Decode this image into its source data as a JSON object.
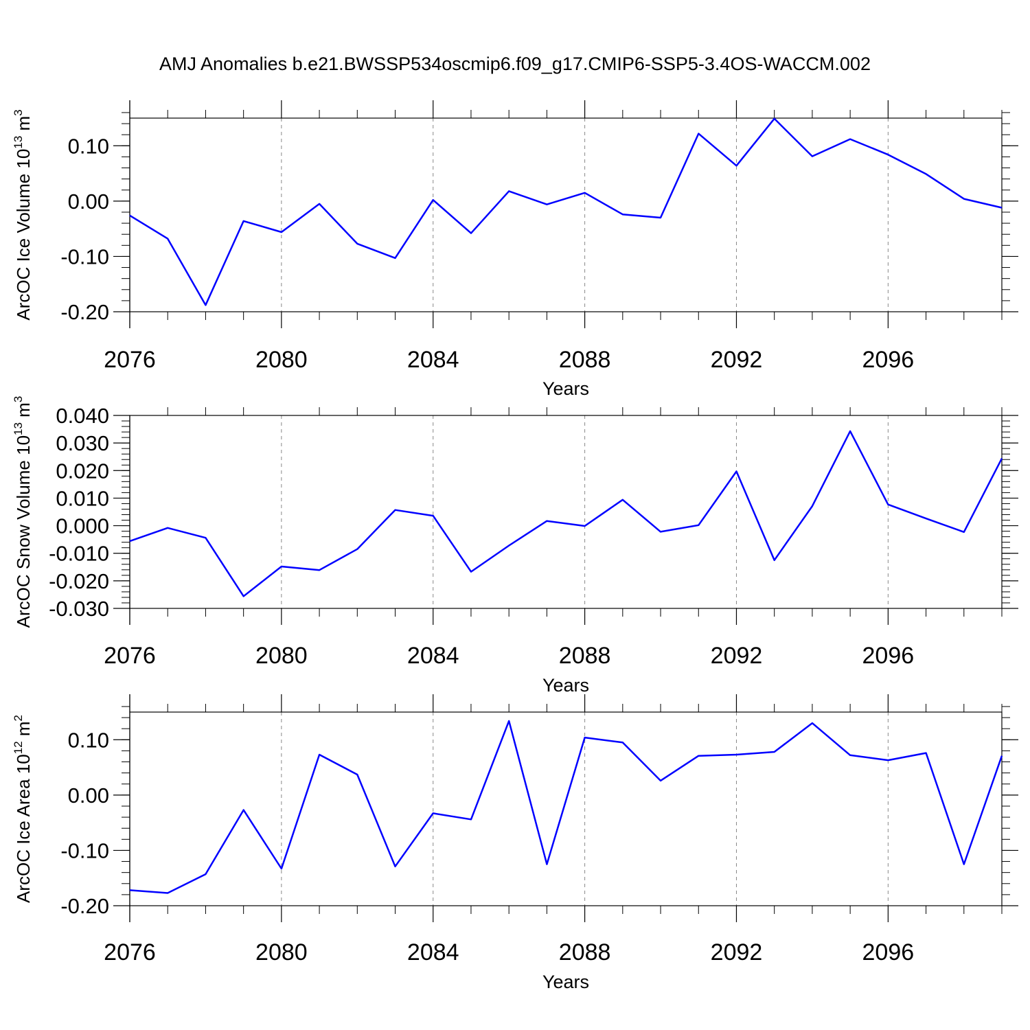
{
  "title": "AMJ Anomalies b.e21.BWSSP534oscmip6.f09_g17.CMIP6-SSP5-3.4OS-WACCM.002",
  "colors": {
    "series": "#0000ff",
    "axis": "#000000",
    "grid": "#888888"
  },
  "chart_data": [
    {
      "type": "line",
      "name": "ice-volume",
      "ylabel": "ArcOC Ice Volume 10",
      "ylabel_sup": "13",
      "ylabel_unit": " m",
      "ylabel_unit_sup": "3",
      "xlabel": "Years",
      "xlim": [
        2076,
        2099
      ],
      "ylim": [
        -0.2,
        0.15
      ],
      "yticks": [
        -0.2,
        -0.1,
        0.0,
        0.1
      ],
      "ytick_labels": [
        "-0.20",
        "-0.10",
        "0.00",
        "0.10"
      ],
      "yminor_step": 0.02,
      "xticks": [
        2076,
        2080,
        2084,
        2088,
        2092,
        2096
      ],
      "xtick_labels": [
        "2076",
        "2080",
        "2084",
        "2088",
        "2092",
        "2096"
      ],
      "grid": "vertical-dashed",
      "series": [
        {
          "name": "ArcOC Ice Volume",
          "x": [
            2076,
            2077,
            2078,
            2079,
            2080,
            2081,
            2082,
            2083,
            2084,
            2085,
            2086,
            2087,
            2088,
            2089,
            2090,
            2091,
            2092,
            2093,
            2094,
            2095,
            2096,
            2097,
            2098,
            2099
          ],
          "values": [
            -0.026,
            -0.068,
            -0.188,
            -0.036,
            -0.056,
            -0.005,
            -0.077,
            -0.103,
            0.002,
            -0.058,
            0.018,
            -0.006,
            0.015,
            -0.024,
            -0.03,
            0.122,
            0.064,
            0.149,
            0.081,
            0.112,
            0.084,
            0.049,
            0.004,
            -0.012
          ]
        }
      ]
    },
    {
      "type": "line",
      "name": "snow-volume",
      "ylabel": "ArcOC Snow Volume 10",
      "ylabel_sup": "13",
      "ylabel_unit": " m",
      "ylabel_unit_sup": "3",
      "xlabel": "Years",
      "xlim": [
        2076,
        2099
      ],
      "ylim": [
        -0.03,
        0.04
      ],
      "yticks": [
        -0.03,
        -0.02,
        -0.01,
        0.0,
        0.01,
        0.02,
        0.03,
        0.04
      ],
      "ytick_labels": [
        "-0.030",
        "-0.020",
        "-0.010",
        "0.000",
        "0.010",
        "0.020",
        "0.030",
        "0.040"
      ],
      "yminor_step": 0.002,
      "xticks": [
        2076,
        2080,
        2084,
        2088,
        2092,
        2096
      ],
      "xtick_labels": [
        "2076",
        "2080",
        "2084",
        "2088",
        "2092",
        "2096"
      ],
      "grid": "vertical-dashed",
      "series": [
        {
          "name": "ArcOC Snow Volume",
          "x": [
            2076,
            2077,
            2078,
            2079,
            2080,
            2081,
            2082,
            2083,
            2084,
            2085,
            2086,
            2087,
            2088,
            2089,
            2090,
            2091,
            2092,
            2093,
            2094,
            2095,
            2096,
            2097,
            2098,
            2099
          ],
          "values": [
            -0.0056,
            -0.0008,
            -0.0044,
            -0.0256,
            -0.0148,
            -0.0161,
            -0.0085,
            0.0057,
            0.0036,
            -0.0167,
            -0.0072,
            0.0017,
            -0.0001,
            0.0094,
            -0.0022,
            0.0002,
            0.0197,
            -0.0125,
            0.0071,
            0.0343,
            0.0077,
            0.0026,
            -0.0023,
            0.0244
          ]
        }
      ]
    },
    {
      "type": "line",
      "name": "ice-area",
      "ylabel": "ArcOC Ice Area 10",
      "ylabel_sup": "12",
      "ylabel_unit": " m",
      "ylabel_unit_sup": "2",
      "xlabel": "Years",
      "xlim": [
        2076,
        2099
      ],
      "ylim": [
        -0.2,
        0.15
      ],
      "yticks": [
        -0.2,
        -0.1,
        0.0,
        0.1
      ],
      "ytick_labels": [
        "-0.20",
        "-0.10",
        "0.00",
        "0.10"
      ],
      "yminor_step": 0.02,
      "xticks": [
        2076,
        2080,
        2084,
        2088,
        2092,
        2096
      ],
      "xtick_labels": [
        "2076",
        "2080",
        "2084",
        "2088",
        "2092",
        "2096"
      ],
      "grid": "vertical-dashed",
      "series": [
        {
          "name": "ArcOC Ice Area",
          "x": [
            2076,
            2077,
            2078,
            2079,
            2080,
            2081,
            2082,
            2083,
            2084,
            2085,
            2086,
            2087,
            2088,
            2089,
            2090,
            2091,
            2092,
            2093,
            2094,
            2095,
            2096,
            2097,
            2098,
            2099
          ],
          "values": [
            -0.172,
            -0.177,
            -0.143,
            -0.027,
            -0.133,
            0.073,
            0.037,
            -0.129,
            -0.033,
            -0.044,
            0.134,
            -0.125,
            0.104,
            0.095,
            0.026,
            0.071,
            0.073,
            0.078,
            0.13,
            0.072,
            0.063,
            0.076,
            -0.125,
            0.071
          ]
        }
      ]
    }
  ]
}
